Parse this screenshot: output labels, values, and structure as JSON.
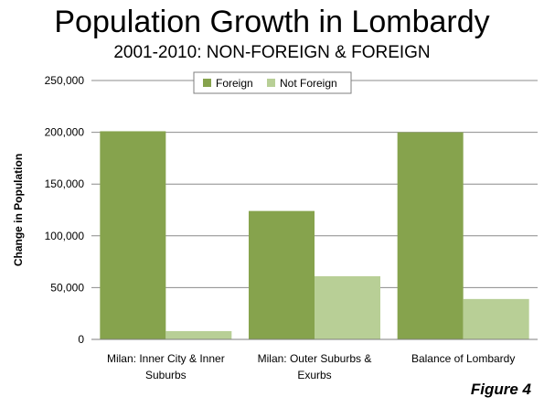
{
  "title": "Population Growth in Lombardy",
  "subtitle": "2001-2010: NON-FOREIGN & FOREIGN",
  "figure_label": "Figure 4",
  "colors": {
    "foreign": "#86a34d",
    "not_foreign": "#b8cf96",
    "grid": "#8c8c8c"
  },
  "chart_data": {
    "type": "bar",
    "categories": [
      [
        "Milan: Inner City & Inner",
        "Suburbs"
      ],
      [
        "Milan: Outer Suburbs &",
        "Exurbs"
      ],
      [
        "Balance of Lombardy"
      ]
    ],
    "series": [
      {
        "name": "Foreign",
        "values": [
          201000,
          124000,
          200000
        ]
      },
      {
        "name": "Not Foreign",
        "values": [
          8000,
          61000,
          39000
        ]
      }
    ],
    "ylabel": "Change in Population",
    "xlabel": "",
    "ylim": [
      0,
      250000
    ],
    "yticks": [
      0,
      50000,
      100000,
      150000,
      200000,
      250000
    ],
    "ytick_labels": [
      "0",
      "50,000",
      "100,000",
      "150,000",
      "200,000",
      "250,000"
    ],
    "legend_position": "top-center",
    "grid": true
  }
}
